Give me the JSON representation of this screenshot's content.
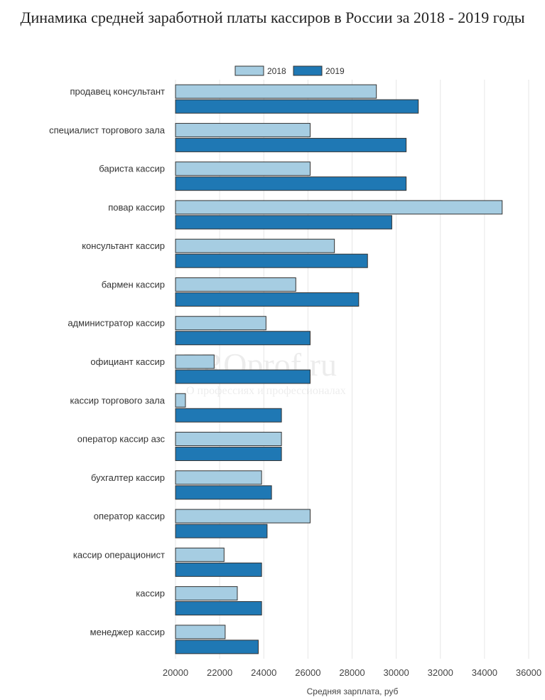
{
  "chart_data": {
    "type": "bar",
    "orientation": "horizontal",
    "title": "Динамика средней заработной платы кассиров в России за 2018 - 2019 годы",
    "xlabel": "Средняя зарплата, руб",
    "ylabel": "",
    "xlim": [
      20000,
      36000
    ],
    "xticks": [
      20000,
      22000,
      24000,
      26000,
      28000,
      30000,
      32000,
      34000,
      36000
    ],
    "grid": true,
    "legend_position": "top-center",
    "categories": [
      "продавец консультант",
      "специалист торгового зала",
      "бариста кассир",
      "повар кассир",
      "консультант кассир",
      "бармен кассир",
      "администратор кассир",
      "официант кассир",
      "кассир торгового зала",
      "оператор кассир азс",
      "бухгалтер кассир",
      "оператор кассир",
      "кассир операционист",
      "кассир",
      "менеджер кассир"
    ],
    "series": [
      {
        "name": "2018",
        "color": "#a6cde2",
        "values": [
          29100,
          26100,
          26100,
          34800,
          27200,
          25450,
          24100,
          21750,
          20450,
          24800,
          23900,
          26100,
          22200,
          22800,
          22250
        ]
      },
      {
        "name": "2019",
        "color": "#1f78b4",
        "values": [
          31000,
          30450,
          30450,
          29800,
          28700,
          28300,
          26100,
          26100,
          24800,
          24800,
          24350,
          24150,
          23900,
          23900,
          23750
        ]
      }
    ]
  },
  "watermark": {
    "brand": "PROprof.ru",
    "tagline": "О профессиях и профессионалах"
  }
}
